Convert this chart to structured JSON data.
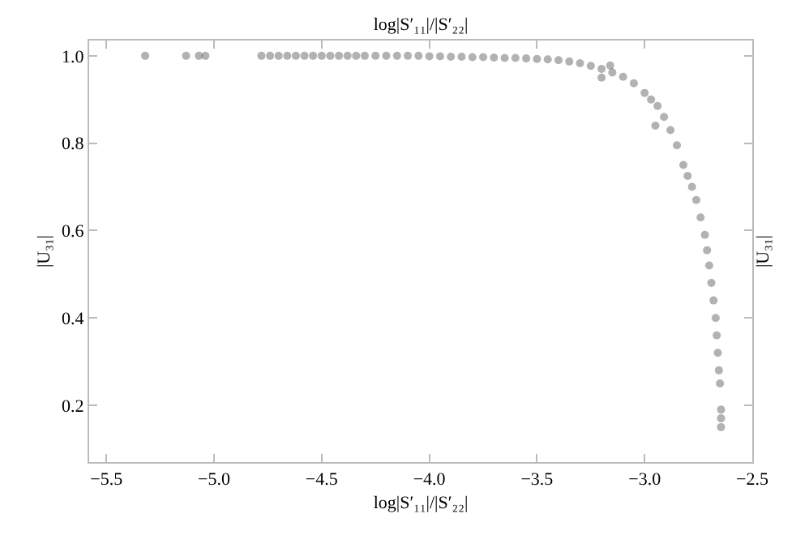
{
  "chart_data": {
    "type": "scatter",
    "xlabel": "log|S′₁₁|/|S′₂₂|",
    "x2label": "log|S′₁₁|/|S′₂₂|",
    "ylabel": "|U₃₁|",
    "y2label": "|U₃₁|",
    "x": [
      -5.32,
      -5.13,
      -5.07,
      -5.04,
      -4.78,
      -4.74,
      -4.7,
      -4.66,
      -4.62,
      -4.58,
      -4.54,
      -4.5,
      -4.46,
      -4.42,
      -4.38,
      -4.34,
      -4.3,
      -4.25,
      -4.2,
      -4.15,
      -4.1,
      -4.05,
      -4.0,
      -3.95,
      -3.9,
      -3.85,
      -3.8,
      -3.75,
      -3.7,
      -3.65,
      -3.6,
      -3.55,
      -3.5,
      -3.45,
      -3.4,
      -3.35,
      -3.3,
      -3.25,
      -3.2,
      -3.15,
      -3.1,
      -3.05,
      -3.0,
      -2.97,
      -2.94,
      -2.91,
      -2.88,
      -2.85,
      -2.82,
      -2.8,
      -2.78,
      -2.76,
      -2.74,
      -2.72,
      -2.71,
      -2.7,
      -2.69,
      -2.68,
      -2.67,
      -2.665,
      -2.66,
      -2.655,
      -2.65,
      -2.645,
      -2.645,
      -2.645,
      -3.2,
      -3.16,
      -2.95
    ],
    "values": [
      1.0,
      1.0,
      1.0,
      1.0,
      1.0,
      1.0,
      1.0,
      1.0,
      1.0,
      1.0,
      1.0,
      1.0,
      1.0,
      1.0,
      1.0,
      1.0,
      1.0,
      1.0,
      1.0,
      1.0,
      1.0,
      1.0,
      0.999,
      0.999,
      0.998,
      0.998,
      0.997,
      0.997,
      0.996,
      0.995,
      0.995,
      0.994,
      0.993,
      0.992,
      0.99,
      0.987,
      0.983,
      0.977,
      0.97,
      0.962,
      0.952,
      0.937,
      0.915,
      0.9,
      0.885,
      0.86,
      0.83,
      0.795,
      0.75,
      0.725,
      0.7,
      0.67,
      0.63,
      0.59,
      0.555,
      0.52,
      0.48,
      0.44,
      0.4,
      0.36,
      0.32,
      0.28,
      0.25,
      0.19,
      0.17,
      0.15,
      0.95,
      0.978,
      0.84
    ],
    "color": "#555555",
    "marker": "circle",
    "xlim": [
      -5.58,
      -2.5
    ],
    "xticks": [
      -5.5,
      {
        "value": -5,
        "label": "−5.0"
      },
      -4.5,
      {
        "value": -4,
        "label": "−4.0"
      },
      -3.5,
      {
        "value": -3,
        "label": "−3.0"
      },
      -2.5
    ],
    "ylim": [
      0.07,
      1.035
    ],
    "yticks": [
      0.2,
      0.4,
      0.6,
      0.8,
      {
        "value": 1,
        "label": "1.0"
      }
    ]
  }
}
